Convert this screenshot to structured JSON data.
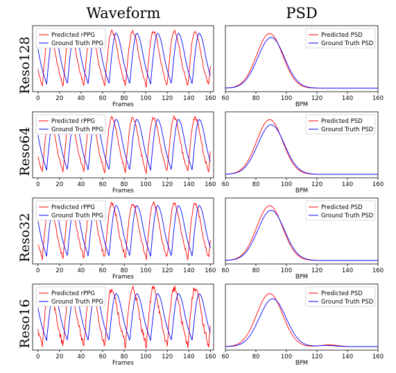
{
  "column_titles": [
    "Waveform",
    "PSD"
  ],
  "row_labels": [
    "Reso128",
    "Reso64",
    "Reso32",
    "Reso16"
  ],
  "colors": {
    "predicted": "#ff0000",
    "ground_truth": "#0000ff"
  },
  "chart_data": [
    {
      "type": "line",
      "panel": "waveform",
      "resolution": "Reso128",
      "xlabel": "Frames",
      "xlim": [
        -5,
        163
      ],
      "xticks": [
        0,
        20,
        40,
        60,
        80,
        100,
        120,
        140,
        160
      ],
      "series": [
        {
          "name": "Predicted rPPG",
          "color": "#ff0000",
          "period": 19.3,
          "phase": 4,
          "amplitude": 1.0,
          "noise": 0.05
        },
        {
          "name": "Ground Truth PPG",
          "color": "#0000ff",
          "period": 19.3,
          "phase": 8,
          "amplitude": 0.92,
          "noise": 0.0
        }
      ],
      "legend": "top-left"
    },
    {
      "type": "line",
      "panel": "psd",
      "resolution": "Reso128",
      "xlabel": "BPM",
      "xlim": [
        60,
        160
      ],
      "xticks": [
        60,
        80,
        100,
        120,
        140,
        160
      ],
      "series": [
        {
          "name": "Predicted PSD",
          "color": "#ff0000",
          "peak_bpm": 89,
          "peak": 0.95,
          "width": 8.5,
          "tail": []
        },
        {
          "name": "Ground Truth PSD",
          "color": "#0000ff",
          "peak_bpm": 90,
          "peak": 0.88,
          "width": 8.7,
          "tail": []
        }
      ],
      "legend": "top-right"
    },
    {
      "type": "line",
      "panel": "waveform",
      "resolution": "Reso64",
      "xlabel": "Frames",
      "xlim": [
        -5,
        163
      ],
      "xticks": [
        0,
        20,
        40,
        60,
        80,
        100,
        120,
        140,
        160
      ],
      "series": [
        {
          "name": "Predicted rPPG",
          "color": "#ff0000",
          "period": 19.3,
          "phase": 4,
          "amplitude": 1.0,
          "noise": 0.06
        },
        {
          "name": "Ground Truth PPG",
          "color": "#0000ff",
          "period": 19.3,
          "phase": 8,
          "amplitude": 0.92,
          "noise": 0.0
        }
      ],
      "legend": "top-left"
    },
    {
      "type": "line",
      "panel": "psd",
      "resolution": "Reso64",
      "xlabel": "BPM",
      "xlim": [
        60,
        160
      ],
      "xticks": [
        60,
        80,
        100,
        120,
        140,
        160
      ],
      "series": [
        {
          "name": "Predicted PSD",
          "color": "#ff0000",
          "peak_bpm": 89,
          "peak": 0.95,
          "width": 8.5,
          "tail": []
        },
        {
          "name": "Ground Truth PSD",
          "color": "#0000ff",
          "peak_bpm": 90,
          "peak": 0.86,
          "width": 8.7,
          "tail": []
        }
      ],
      "legend": "top-right"
    },
    {
      "type": "line",
      "panel": "waveform",
      "resolution": "Reso32",
      "xlabel": "Frames",
      "xlim": [
        -5,
        163
      ],
      "xticks": [
        0,
        20,
        40,
        60,
        80,
        100,
        120,
        140,
        160
      ],
      "series": [
        {
          "name": "Predicted rPPG",
          "color": "#ff0000",
          "period": 19.3,
          "phase": 4,
          "amplitude": 1.0,
          "noise": 0.07
        },
        {
          "name": "Ground Truth PPG",
          "color": "#0000ff",
          "period": 19.3,
          "phase": 8,
          "amplitude": 0.92,
          "noise": 0.0
        }
      ],
      "legend": "top-left"
    },
    {
      "type": "line",
      "panel": "psd",
      "resolution": "Reso32",
      "xlabel": "BPM",
      "xlim": [
        60,
        160
      ],
      "xticks": [
        60,
        80,
        100,
        120,
        140,
        160
      ],
      "series": [
        {
          "name": "Predicted PSD",
          "color": "#ff0000",
          "peak_bpm": 89,
          "peak": 0.95,
          "width": 8.5,
          "tail": []
        },
        {
          "name": "Ground Truth PSD",
          "color": "#0000ff",
          "peak_bpm": 90,
          "peak": 0.87,
          "width": 8.7,
          "tail": []
        }
      ],
      "legend": "top-right"
    },
    {
      "type": "line",
      "panel": "waveform",
      "resolution": "Reso16",
      "xlabel": "Frames",
      "xlim": [
        -5,
        163
      ],
      "xticks": [
        0,
        20,
        40,
        60,
        80,
        100,
        120,
        140,
        160
      ],
      "series": [
        {
          "name": "Predicted rPPG",
          "color": "#ff0000",
          "period": 19.3,
          "phase": 4,
          "amplitude": 1.05,
          "noise": 0.12
        },
        {
          "name": "Ground Truth PPG",
          "color": "#0000ff",
          "period": 19.3,
          "phase": 8,
          "amplitude": 0.85,
          "noise": 0.0
        }
      ],
      "legend": "top-left"
    },
    {
      "type": "line",
      "panel": "psd",
      "resolution": "Reso16",
      "xlabel": "BPM",
      "xlim": [
        60,
        160
      ],
      "xticks": [
        60,
        80,
        100,
        120,
        140,
        160
      ],
      "series": [
        {
          "name": "Predicted PSD",
          "color": "#ff0000",
          "peak_bpm": 89,
          "peak": 0.92,
          "width": 8.5,
          "tail": [
            [
              128,
              0.03
            ]
          ]
        },
        {
          "name": "Ground Truth PSD",
          "color": "#0000ff",
          "peak_bpm": 91,
          "peak": 0.83,
          "width": 8.7,
          "tail": [
            [
              126,
              0.02
            ]
          ]
        }
      ],
      "legend": "top-right"
    }
  ]
}
